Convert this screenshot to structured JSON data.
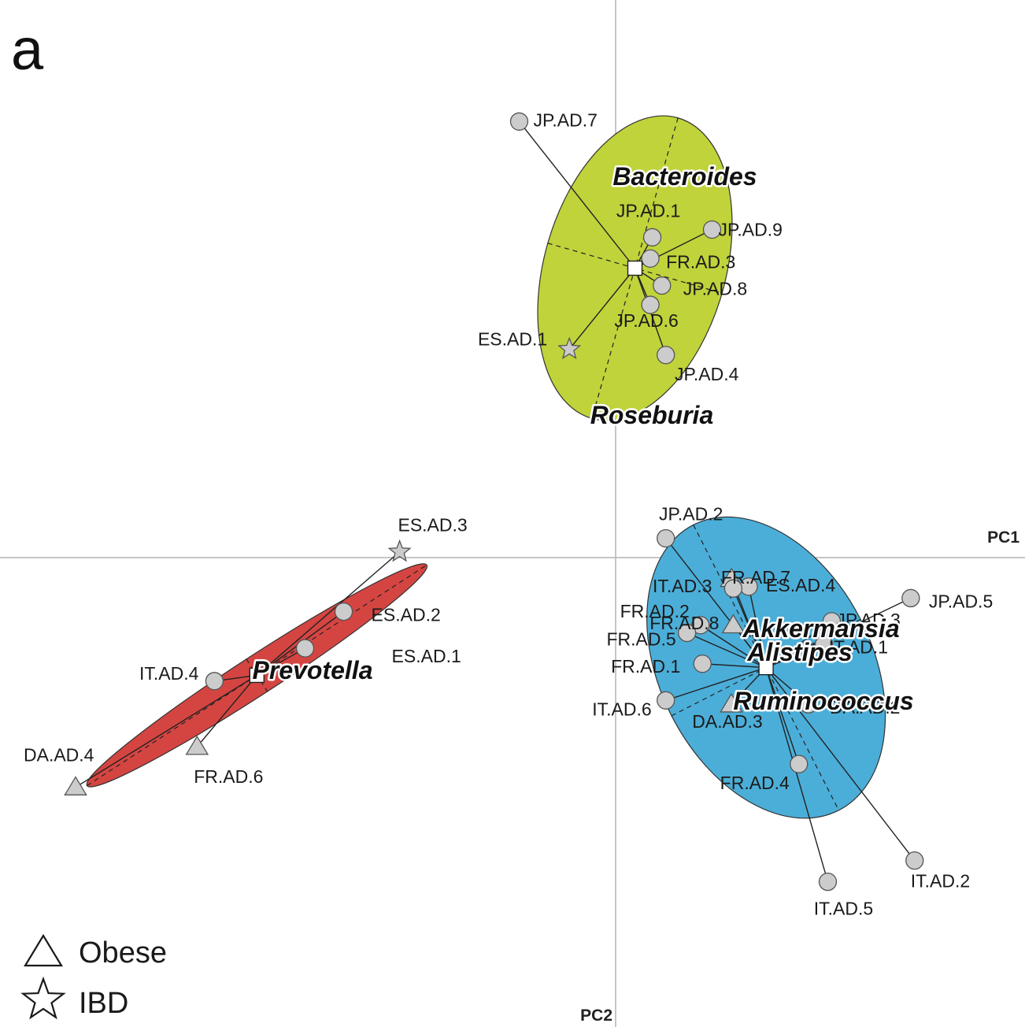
{
  "panel_label": "a",
  "chart_data": {
    "type": "scatter",
    "xlabel": "PC1",
    "ylabel": "PC2",
    "xlim": [
      -3.2,
      2.1
    ],
    "ylim": [
      -2.4,
      2.75
    ],
    "grid": false,
    "legend_placement": "bottom-left",
    "legend": [
      {
        "label": "Obese",
        "marker": "triangle"
      },
      {
        "label": "IBD",
        "marker": "star"
      }
    ],
    "colors": {
      "Bacteroides": "#c0d33b",
      "Prevotella": "#d44542",
      "Ruminococcus": "#4baed8",
      "points": "#cccccc"
    },
    "clusters": [
      {
        "genus_labels": [
          "Bacteroides",
          "Roseburia"
        ],
        "centroid": [
          0.1,
          1.5
        ],
        "ellipse": {
          "rx": 0.47,
          "ry": 0.81,
          "angle_deg": 16
        },
        "samples": [
          {
            "label": "JP.AD.7",
            "x": -0.5,
            "y": 2.26,
            "marker": "circle"
          },
          {
            "label": "JP.AD.1",
            "x": 0.19,
            "y": 1.66,
            "marker": "circle"
          },
          {
            "label": "JP.AD.9",
            "x": 0.5,
            "y": 1.7,
            "marker": "circle"
          },
          {
            "label": "FR.AD.3",
            "x": 0.18,
            "y": 1.55,
            "marker": "circle"
          },
          {
            "label": "JP.AD.8",
            "x": 0.24,
            "y": 1.41,
            "marker": "circle"
          },
          {
            "label": "JP.AD.6",
            "x": 0.18,
            "y": 1.31,
            "marker": "circle"
          },
          {
            "label": "JP.AD.4",
            "x": 0.26,
            "y": 1.05,
            "marker": "circle"
          },
          {
            "label": "ES.AD.1",
            "x": -0.24,
            "y": 1.08,
            "marker": "star"
          }
        ]
      },
      {
        "genus_labels": [
          "Prevotella"
        ],
        "centroid": [
          -1.86,
          -0.61
        ],
        "ellipse": {
          "rx": 1.05,
          "ry": 0.1,
          "angle_deg": -33
        },
        "samples": [
          {
            "label": "ES.AD.3",
            "x": -1.12,
            "y": 0.03,
            "marker": "star"
          },
          {
            "label": "ES.AD.2",
            "x": -1.41,
            "y": -0.28,
            "marker": "circle"
          },
          {
            "label": "ES.AD.1",
            "x": -1.61,
            "y": -0.47,
            "marker": "circle"
          },
          {
            "label": "IT.AD.4",
            "x": -2.08,
            "y": -0.64,
            "marker": "circle"
          },
          {
            "label": "FR.AD.6",
            "x": -2.17,
            "y": -0.98,
            "marker": "triangle"
          },
          {
            "label": "DA.AD.4",
            "x": -2.8,
            "y": -1.19,
            "marker": "triangle"
          }
        ]
      },
      {
        "genus_labels": [
          "Akkermansia",
          "Alistipes",
          "Ruminococcus"
        ],
        "centroid": [
          0.78,
          -0.57
        ],
        "ellipse": {
          "rx": 0.55,
          "ry": 0.83,
          "angle_deg": -27
        },
        "samples": [
          {
            "label": "JP.AD.2",
            "x": 0.26,
            "y": 0.1,
            "marker": "circle"
          },
          {
            "label": "FR.AD.7",
            "x": 0.6,
            "y": -0.11,
            "marker": "triangle"
          },
          {
            "label": "ES.AD.4",
            "x": 0.69,
            "y": -0.15,
            "marker": "circle"
          },
          {
            "label": "IT.AD.3",
            "x": 0.61,
            "y": -0.16,
            "marker": "circle"
          },
          {
            "label": "JP.AD.5",
            "x": 1.53,
            "y": -0.21,
            "marker": "circle"
          },
          {
            "label": "JP.AD.3",
            "x": 1.12,
            "y": -0.33,
            "marker": "circle"
          },
          {
            "label": "IT.AD.1",
            "x": 1.08,
            "y": -0.45,
            "marker": "circle"
          },
          {
            "label": "FR.AD.8",
            "x": 0.61,
            "y": -0.35,
            "marker": "triangle"
          },
          {
            "label": "FR.AD.2",
            "x": 0.44,
            "y": -0.35,
            "marker": "circle"
          },
          {
            "label": "FR.AD.5",
            "x": 0.37,
            "y": -0.39,
            "marker": "circle"
          },
          {
            "label": "FR.AD.1",
            "x": 0.45,
            "y": -0.55,
            "marker": "circle"
          },
          {
            "label": "IT.AD.6",
            "x": 0.26,
            "y": -0.74,
            "marker": "circle"
          },
          {
            "label": "DA.AD.3",
            "x": 0.6,
            "y": -0.76,
            "marker": "triangle"
          },
          {
            "label": "DA.AD.2",
            "x": 1.0,
            "y": -0.76,
            "marker": "circle"
          },
          {
            "label": "FR.AD.4",
            "x": 0.95,
            "y": -1.07,
            "marker": "circle"
          },
          {
            "label": "IT.AD.2",
            "x": 1.55,
            "y": -1.57,
            "marker": "circle"
          },
          {
            "label": "IT.AD.5",
            "x": 1.1,
            "y": -1.68,
            "marker": "circle"
          }
        ]
      }
    ]
  }
}
